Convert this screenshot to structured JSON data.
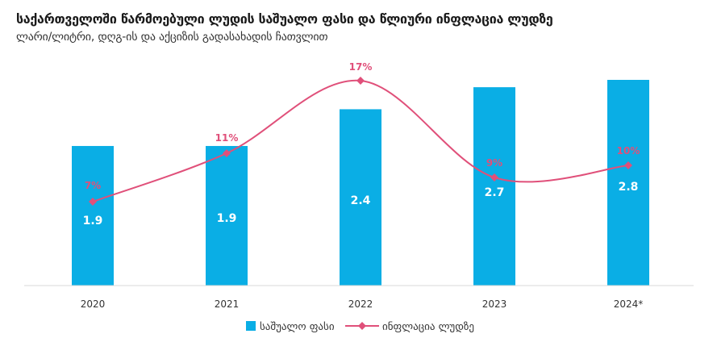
{
  "chart_data": {
    "type": "bar",
    "title": "საქართველოში წარმოებული ლუდის საშუალო ფასი და წლიური ინფლაცია ლუდზე",
    "subtitle": "ლარი/ლიტრი, დღგ-ის და აქციზის გადასახადის ჩათვლით",
    "categories": [
      "2020",
      "2021",
      "2022",
      "2023",
      "2024*"
    ],
    "series": [
      {
        "name": "საშუალო ფასი",
        "type": "bar",
        "color": "#0aaee5",
        "values": [
          1.9,
          1.9,
          2.4,
          2.7,
          2.8
        ]
      },
      {
        "name": "ინფლაცია ლუდზე",
        "type": "line",
        "color": "#e0507a",
        "values": [
          7,
          11,
          17,
          9,
          10
        ],
        "labels": [
          "7%",
          "11%",
          "17%",
          "9%",
          "10%"
        ]
      }
    ],
    "bar_labels": [
      "1.9",
      "1.9",
      "2.4",
      "2.7",
      "2.8"
    ],
    "bar_ylim": [
      0,
      3.05
    ],
    "line_ylim": [
      -5,
      20
    ],
    "grid": false,
    "legend_position": "bottom"
  }
}
